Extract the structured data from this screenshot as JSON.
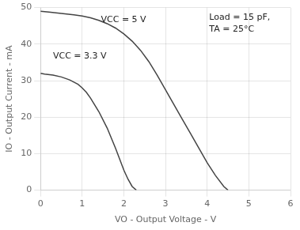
{
  "chart_data": {
    "type": "line",
    "x_label": "VO - Output Voltage - V",
    "y_label": "IO - Output Current - mA",
    "xlim": [
      0,
      6
    ],
    "ylim": [
      0,
      50
    ],
    "xticks": [
      0,
      1,
      2,
      3,
      4,
      5,
      6
    ],
    "yticks": [
      0,
      10,
      20,
      30,
      40,
      50
    ],
    "grid": true,
    "series": [
      {
        "color": "#444444",
        "x": [
          0.0,
          0.2,
          0.5,
          0.8,
          1.0,
          1.2,
          1.4,
          1.6,
          1.8,
          2.0,
          2.2,
          2.4,
          2.6,
          2.8,
          3.0,
          3.2,
          3.4,
          3.6,
          3.8,
          4.0,
          4.2,
          4.4,
          4.5
        ],
        "values": [
          49.0,
          48.8,
          48.4,
          48.0,
          47.7,
          47.2,
          46.5,
          45.6,
          44.4,
          42.8,
          40.8,
          38.3,
          35.2,
          31.5,
          27.5,
          23.5,
          19.5,
          15.5,
          11.5,
          7.5,
          4.0,
          1.0,
          0.0
        ]
      },
      {
        "color": "#444444",
        "x": [
          0.0,
          0.1,
          0.3,
          0.5,
          0.7,
          0.9,
          1.0,
          1.1,
          1.2,
          1.4,
          1.6,
          1.8,
          2.0,
          2.1,
          2.2,
          2.3
        ],
        "values": [
          32.0,
          31.8,
          31.5,
          31.0,
          30.2,
          29.0,
          28.0,
          26.8,
          25.2,
          21.5,
          17.0,
          11.5,
          5.5,
          3.0,
          1.0,
          0.0
        ]
      }
    ],
    "annotations": [
      {
        "text": "VCC = 5 V",
        "x": 1.45,
        "y": 45.5
      },
      {
        "text": "VCC = 3.3 V",
        "x": 0.3,
        "y": 35.5
      },
      {
        "text": "Load = 15 pF,\nTA = 25°C",
        "x": 4.05,
        "y": 48.5
      }
    ]
  }
}
